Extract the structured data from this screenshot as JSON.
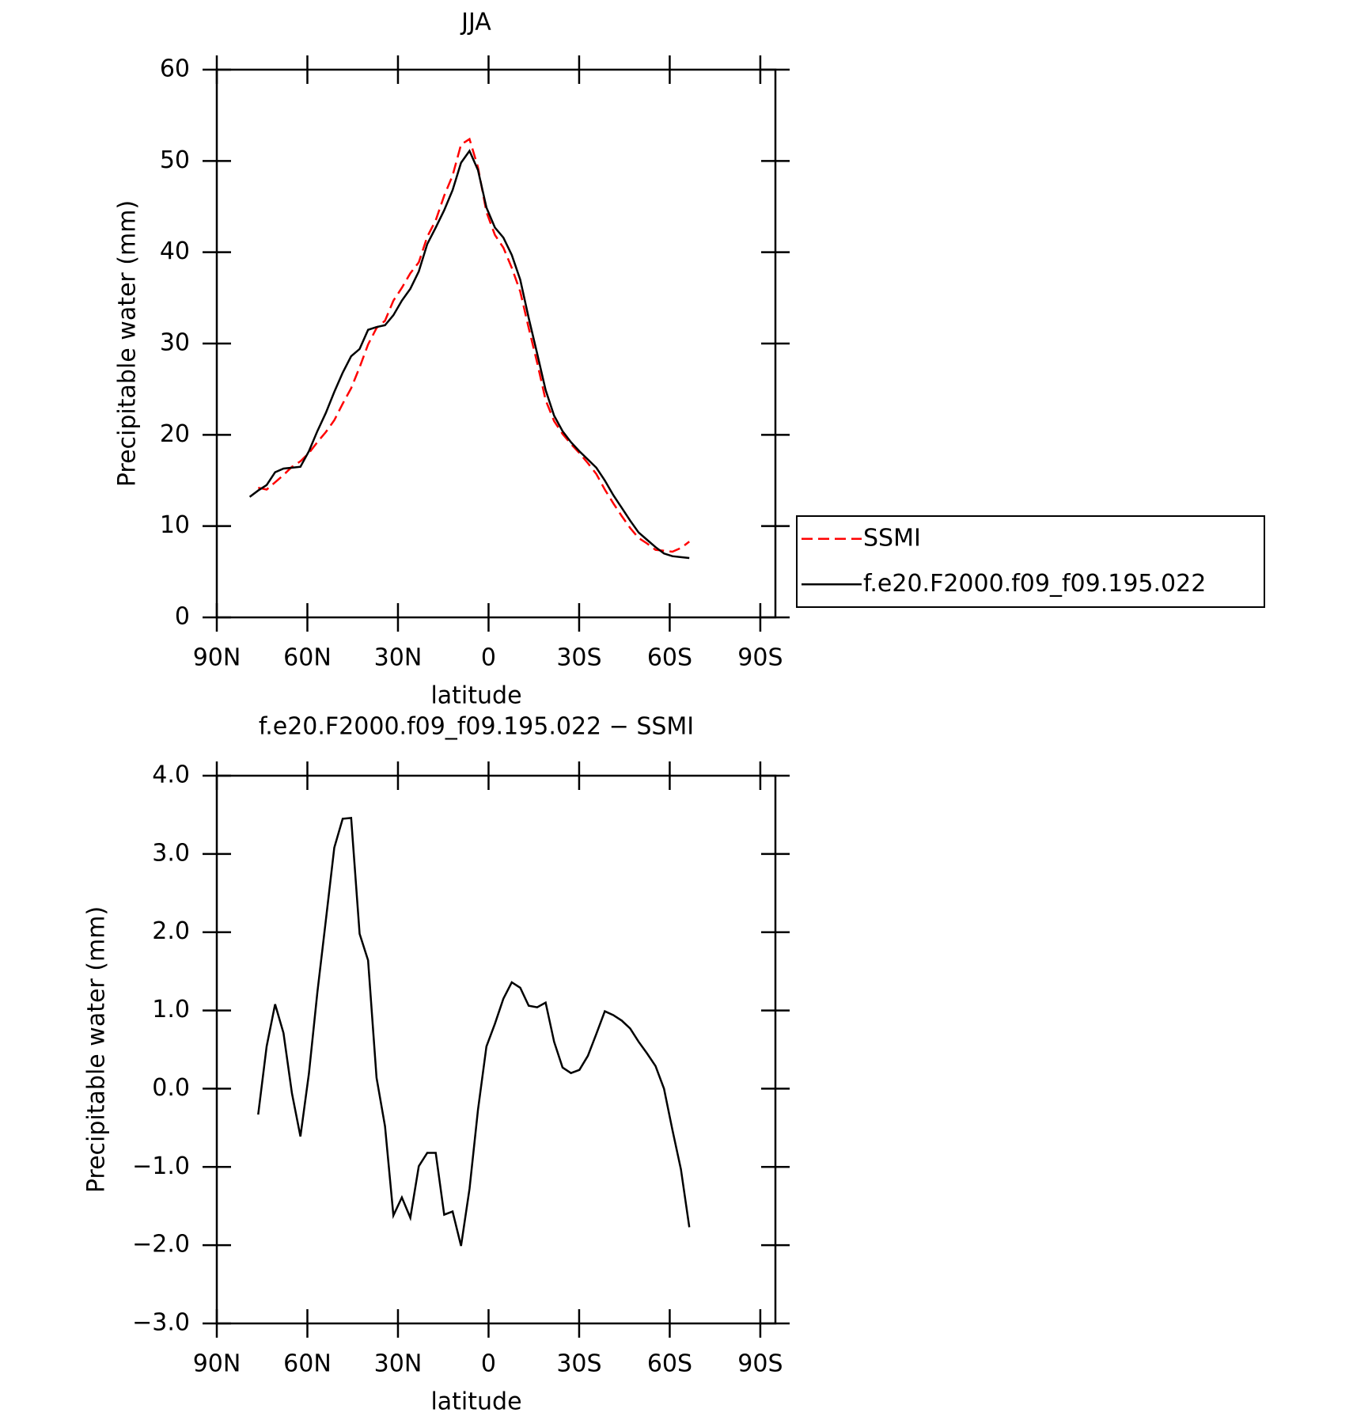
{
  "chart_data": [
    {
      "type": "line",
      "title": "JJA",
      "xlabel": "latitude",
      "ylabel": "Precipitable water (mm)",
      "x": [
        79.1,
        76.3,
        73.5,
        70.7,
        67.9,
        65.1,
        62.3,
        59.5,
        56.7,
        53.9,
        51.1,
        48.3,
        45.5,
        42.7,
        39.9,
        37.1,
        34.3,
        31.5,
        28.7,
        25.9,
        23.1,
        20.3,
        17.5,
        14.7,
        11.9,
        9.1,
        6.3,
        3.5,
        0.7,
        -2.1,
        -4.9,
        -7.7,
        -10.5,
        -13.3,
        -16.1,
        -18.9,
        -21.7,
        -24.5,
        -27.3,
        -30.1,
        -32.9,
        -35.7,
        -38.5,
        -41.3,
        -44.1,
        -46.9,
        -49.7,
        -52.5,
        -55.3,
        -58.1,
        -60.9,
        -63.7,
        -66.5
      ],
      "series": [
        {
          "name": "SSMI",
          "color": "#ff0000",
          "dash": true,
          "values": [
            null,
            14.2,
            14.0,
            14.8,
            15.6,
            16.5,
            17.1,
            18.0,
            19.2,
            20.3,
            21.6,
            23.4,
            25.1,
            27.4,
            29.9,
            31.7,
            32.5,
            34.7,
            36.1,
            37.7,
            38.9,
            41.7,
            43.5,
            46.2,
            48.4,
            51.8,
            52.4,
            49.3,
            44.4,
            41.9,
            40.5,
            38.3,
            35.7,
            31.7,
            27.9,
            23.8,
            21.5,
            20.1,
            19.0,
            18.0,
            16.9,
            15.7,
            14.0,
            12.5,
            11.1,
            9.8,
            8.7,
            8.1,
            7.4,
            7.3,
            7.2,
            7.6,
            8.3
          ]
        },
        {
          "name": "f.e20.F2000.f09_f09.195.022",
          "color": "#000000",
          "dash": false,
          "values": [
            13.2,
            13.9,
            14.5,
            15.9,
            16.3,
            16.4,
            16.5,
            18.2,
            20.4,
            22.4,
            24.7,
            26.8,
            28.6,
            29.4,
            31.5,
            31.8,
            32.0,
            33.1,
            34.7,
            36.0,
            37.9,
            40.9,
            42.7,
            44.6,
            46.8,
            49.8,
            51.1,
            49.0,
            44.9,
            42.7,
            41.6,
            39.7,
            37.0,
            32.8,
            28.9,
            24.9,
            22.1,
            20.4,
            19.2,
            18.2,
            17.3,
            16.4,
            15.0,
            13.4,
            12.0,
            10.6,
            9.3,
            8.5,
            7.7,
            7.0,
            6.7,
            6.6,
            6.5
          ]
        }
      ],
      "xlim": [
        90,
        -95
      ],
      "xticks": [
        {
          "value": 90,
          "label": "90N"
        },
        {
          "value": 60,
          "label": "60N"
        },
        {
          "value": 30,
          "label": "30N"
        },
        0,
        {
          "value": -30,
          "label": "30S"
        },
        {
          "value": -60,
          "label": "60S"
        },
        {
          "value": -90,
          "label": "90S"
        }
      ],
      "ylim": [
        0,
        60
      ],
      "yticks": [
        0,
        10,
        20,
        30,
        40,
        50,
        60
      ],
      "legend": "right"
    },
    {
      "type": "line",
      "title": "f.e20.F2000.f09_f09.195.022 − SSMI",
      "xlabel": "latitude",
      "ylabel": "Precipitable water (mm)",
      "x": [
        76.3,
        73.5,
        70.7,
        67.9,
        65.1,
        62.3,
        59.5,
        56.7,
        53.9,
        51.1,
        48.3,
        45.5,
        42.7,
        39.9,
        37.1,
        34.3,
        31.5,
        28.7,
        25.9,
        23.1,
        20.3,
        17.5,
        14.7,
        11.9,
        9.1,
        6.3,
        3.5,
        0.7,
        -2.1,
        -4.9,
        -7.7,
        -10.5,
        -13.3,
        -16.1,
        -18.9,
        -21.7,
        -24.5,
        -27.3,
        -30.1,
        -32.9,
        -35.7,
        -38.5,
        -41.3,
        -44.1,
        -46.9,
        -49.7,
        -52.5,
        -55.3,
        -58.1,
        -60.9,
        -63.7,
        -66.5
      ],
      "series": [
        {
          "color": "#000000",
          "dash": false,
          "values": [
            -0.33,
            0.54,
            1.08,
            0.71,
            -0.06,
            -0.61,
            0.19,
            1.23,
            2.15,
            3.08,
            3.45,
            3.46,
            1.98,
            1.64,
            0.14,
            -0.48,
            -1.62,
            -1.39,
            -1.65,
            -0.99,
            -0.82,
            -0.82,
            -1.61,
            -1.57,
            -2.01,
            -1.28,
            -0.27,
            0.54,
            0.83,
            1.15,
            1.36,
            1.29,
            1.06,
            1.04,
            1.1,
            0.6,
            0.27,
            0.2,
            0.24,
            0.42,
            0.7,
            0.99,
            0.94,
            0.87,
            0.77,
            0.6,
            0.45,
            0.29,
            0.0,
            -0.53,
            -1.03,
            -1.77
          ]
        }
      ],
      "xlim": [
        90,
        -95
      ],
      "xticks": [
        {
          "value": 90,
          "label": "90N"
        },
        {
          "value": 60,
          "label": "60N"
        },
        {
          "value": 30,
          "label": "30N"
        },
        0,
        {
          "value": -30,
          "label": "30S"
        },
        {
          "value": -60,
          "label": "60S"
        },
        {
          "value": -90,
          "label": "90S"
        }
      ],
      "ylim": [
        -3,
        4
      ],
      "yticks": [
        {
          "value": 4,
          "label": "4.0"
        },
        {
          "value": 3,
          "label": "3.0"
        },
        {
          "value": 2,
          "label": "2.0"
        },
        {
          "value": 1,
          "label": "1.0"
        },
        {
          "value": 0,
          "label": "0.0"
        },
        {
          "value": -1,
          "label": "−1.0"
        },
        {
          "value": -2,
          "label": "−2.0"
        },
        {
          "value": -3,
          "label": "−3.0"
        }
      ]
    }
  ]
}
